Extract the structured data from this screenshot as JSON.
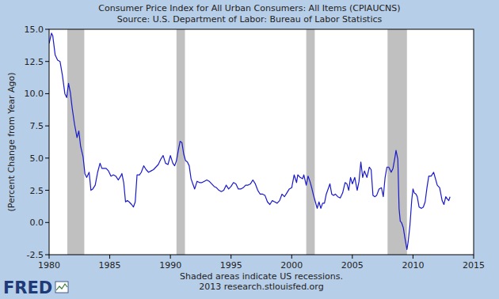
{
  "chart_data": {
    "type": "line",
    "title": "Consumer Price Index for All Urban Consumers: All Items (CPIAUCNS)",
    "subtitle": "Source: U.S. Department of Labor: Bureau of Labor Statistics",
    "y_label": "(Percent Change from Year Ago)",
    "annotations": [
      "Shaded areas indicate US recessions.",
      "2013 research.stlouisfed.org"
    ],
    "logo": "FRED",
    "color": "#1a1acc",
    "grid": false,
    "xlim": [
      1980,
      2015
    ],
    "xticks": [
      1980,
      1985,
      1990,
      1995,
      2000,
      2005,
      2010,
      2015
    ],
    "ylim": [
      -2.5,
      15
    ],
    "yticks": [
      -2.5,
      {
        "value": 0,
        "label": "0.0"
      },
      2.5,
      {
        "value": 5,
        "label": "5.0"
      },
      7.5,
      {
        "value": 10,
        "label": "10.0"
      },
      12.5,
      {
        "value": 15,
        "label": "15.0"
      }
    ],
    "recessions": [
      {
        "start": 1981.5,
        "end": 1982.9
      },
      {
        "start": 1990.5,
        "end": 1991.2
      },
      {
        "start": 2001.2,
        "end": 2001.9
      },
      {
        "start": 2007.9,
        "end": 2009.5
      }
    ],
    "x": [
      1980.0,
      1980.2,
      1980.3,
      1980.5,
      1980.7,
      1980.9,
      1981.1,
      1981.3,
      1981.45,
      1981.6,
      1981.75,
      1981.9,
      1982.1,
      1982.3,
      1982.45,
      1982.6,
      1982.8,
      1982.95,
      1983.1,
      1983.3,
      1983.45,
      1983.6,
      1983.8,
      1984.0,
      1984.2,
      1984.35,
      1984.5,
      1984.7,
      1984.9,
      1985.1,
      1985.3,
      1985.5,
      1985.7,
      1985.9,
      1986.0,
      1986.15,
      1986.3,
      1986.45,
      1986.6,
      1986.8,
      1986.95,
      1987.1,
      1987.25,
      1987.45,
      1987.6,
      1987.8,
      1988.0,
      1988.2,
      1988.4,
      1988.6,
      1988.8,
      1989.0,
      1989.2,
      1989.4,
      1989.6,
      1989.8,
      1990.0,
      1990.2,
      1990.35,
      1990.5,
      1990.65,
      1990.8,
      1990.95,
      1991.1,
      1991.25,
      1991.4,
      1991.55,
      1991.7,
      1991.85,
      1992.0,
      1992.2,
      1992.4,
      1992.6,
      1992.8,
      1993.0,
      1993.2,
      1993.4,
      1993.6,
      1993.8,
      1994.0,
      1994.2,
      1994.4,
      1994.6,
      1994.8,
      1995.0,
      1995.2,
      1995.4,
      1995.6,
      1995.8,
      1996.0,
      1996.2,
      1996.4,
      1996.6,
      1996.8,
      1997.0,
      1997.2,
      1997.4,
      1997.6,
      1997.8,
      1998.0,
      1998.2,
      1998.4,
      1998.6,
      1998.8,
      1999.0,
      1999.2,
      1999.4,
      1999.6,
      1999.8,
      2000.0,
      2000.2,
      2000.4,
      2000.5,
      2000.7,
      2000.9,
      2001.0,
      2001.2,
      2001.35,
      2001.5,
      2001.65,
      2001.8,
      2001.95,
      2002.1,
      2002.25,
      2002.4,
      2002.55,
      2002.7,
      2002.85,
      2003.0,
      2003.15,
      2003.3,
      2003.45,
      2003.6,
      2003.8,
      2004.0,
      2004.2,
      2004.4,
      2004.55,
      2004.7,
      2004.85,
      2005.0,
      2005.2,
      2005.4,
      2005.55,
      2005.7,
      2005.85,
      2006.0,
      2006.2,
      2006.4,
      2006.55,
      2006.7,
      2006.85,
      2007.0,
      2007.2,
      2007.4,
      2007.55,
      2007.7,
      2007.85,
      2008.0,
      2008.2,
      2008.35,
      2008.5,
      2008.6,
      2008.75,
      2008.85,
      2008.95,
      2009.05,
      2009.2,
      2009.35,
      2009.5,
      2009.6,
      2009.75,
      2009.9,
      2010.0,
      2010.1,
      2010.25,
      2010.35,
      2010.5,
      2010.7,
      2010.85,
      2011.0,
      2011.15,
      2011.3,
      2011.5,
      2011.7,
      2011.85,
      2012.0,
      2012.2,
      2012.4,
      2012.55,
      2012.7,
      2012.85,
      2012.95,
      2013.05
    ],
    "values": [
      13.9,
      14.7,
      14.5,
      13.0,
      12.6,
      12.5,
      11.4,
      10.0,
      9.7,
      10.8,
      10.1,
      8.9,
      7.6,
      6.6,
      7.1,
      5.9,
      5.1,
      3.8,
      3.5,
      3.9,
      2.5,
      2.6,
      2.9,
      3.9,
      4.6,
      4.2,
      4.2,
      4.2,
      4.0,
      3.6,
      3.7,
      3.6,
      3.3,
      3.6,
      3.8,
      3.1,
      1.6,
      1.7,
      1.6,
      1.4,
      1.2,
      1.6,
      3.7,
      3.7,
      3.9,
      4.4,
      4.1,
      3.9,
      4.0,
      4.1,
      4.3,
      4.5,
      4.9,
      5.2,
      4.6,
      4.5,
      5.2,
      4.6,
      4.4,
      4.8,
      5.6,
      6.3,
      6.2,
      5.3,
      4.8,
      4.7,
      4.4,
      3.4,
      3.0,
      2.6,
      3.2,
      3.1,
      3.1,
      3.2,
      3.3,
      3.2,
      3.0,
      2.8,
      2.7,
      2.5,
      2.4,
      2.5,
      2.9,
      2.6,
      2.8,
      3.1,
      3.0,
      2.6,
      2.6,
      2.7,
      2.9,
      2.9,
      3.0,
      3.3,
      3.0,
      2.5,
      2.2,
      2.2,
      2.1,
      1.6,
      1.4,
      1.7,
      1.6,
      1.5,
      1.7,
      2.2,
      2.0,
      2.3,
      2.6,
      2.7,
      3.7,
      3.1,
      3.7,
      3.5,
      3.4,
      3.7,
      2.9,
      3.6,
      3.2,
      2.7,
      2.1,
      1.6,
      1.1,
      1.6,
      1.1,
      1.5,
      1.5,
      2.2,
      2.6,
      3.0,
      2.2,
      2.1,
      2.2,
      2.0,
      1.9,
      2.3,
      3.1,
      3.0,
      2.5,
      3.5,
      3.0,
      3.5,
      2.5,
      3.2,
      4.7,
      3.5,
      4.0,
      3.5,
      4.3,
      4.1,
      2.1,
      2.0,
      2.1,
      2.6,
      2.7,
      2.0,
      3.5,
      4.3,
      4.3,
      3.9,
      4.2,
      5.0,
      5.6,
      4.9,
      1.1,
      0.1,
      0.0,
      -0.4,
      -1.3,
      -2.1,
      -1.5,
      -0.2,
      1.8,
      2.6,
      2.3,
      2.2,
      2.0,
      1.2,
      1.1,
      1.2,
      1.6,
      2.7,
      3.6,
      3.6,
      3.9,
      3.4,
      2.9,
      2.7,
      1.7,
      1.4,
      2.0,
      1.8,
      1.7,
      2.0
    ]
  }
}
